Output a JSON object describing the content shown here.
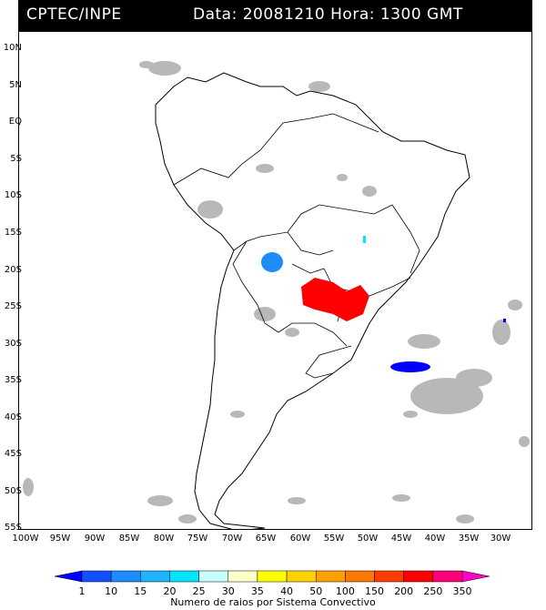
{
  "header": {
    "source": "CPTEC/INPE",
    "datetime": "Data: 20081210 Hora: 1300 GMT"
  },
  "axes": {
    "lat_labels": [
      "10N",
      "5N",
      "EQ",
      "5S",
      "10S",
      "15S",
      "20S",
      "25S",
      "30S",
      "35S",
      "40S",
      "45S",
      "50S",
      "55S"
    ],
    "lon_labels": [
      "100W",
      "95W",
      "90W",
      "85W",
      "80W",
      "75W",
      "70W",
      "65W",
      "60W",
      "55W",
      "50W",
      "45W",
      "40W",
      "35W",
      "30W"
    ]
  },
  "colorbar": {
    "labels": [
      "1",
      "10",
      "15",
      "20",
      "25",
      "30",
      "35",
      "40",
      "50",
      "100",
      "150",
      "200",
      "250",
      "350"
    ],
    "colors": [
      "#0000ff",
      "#1450ff",
      "#1e8cff",
      "#1eb4ff",
      "#00e6ff",
      "#c8ffff",
      "#ffffc8",
      "#ffff00",
      "#ffd200",
      "#ffa000",
      "#ff7800",
      "#ff3c00",
      "#ff0000",
      "#ff0078",
      "#ff00c8"
    ],
    "title": "Numero de raios por Sistema Convectivo"
  }
}
